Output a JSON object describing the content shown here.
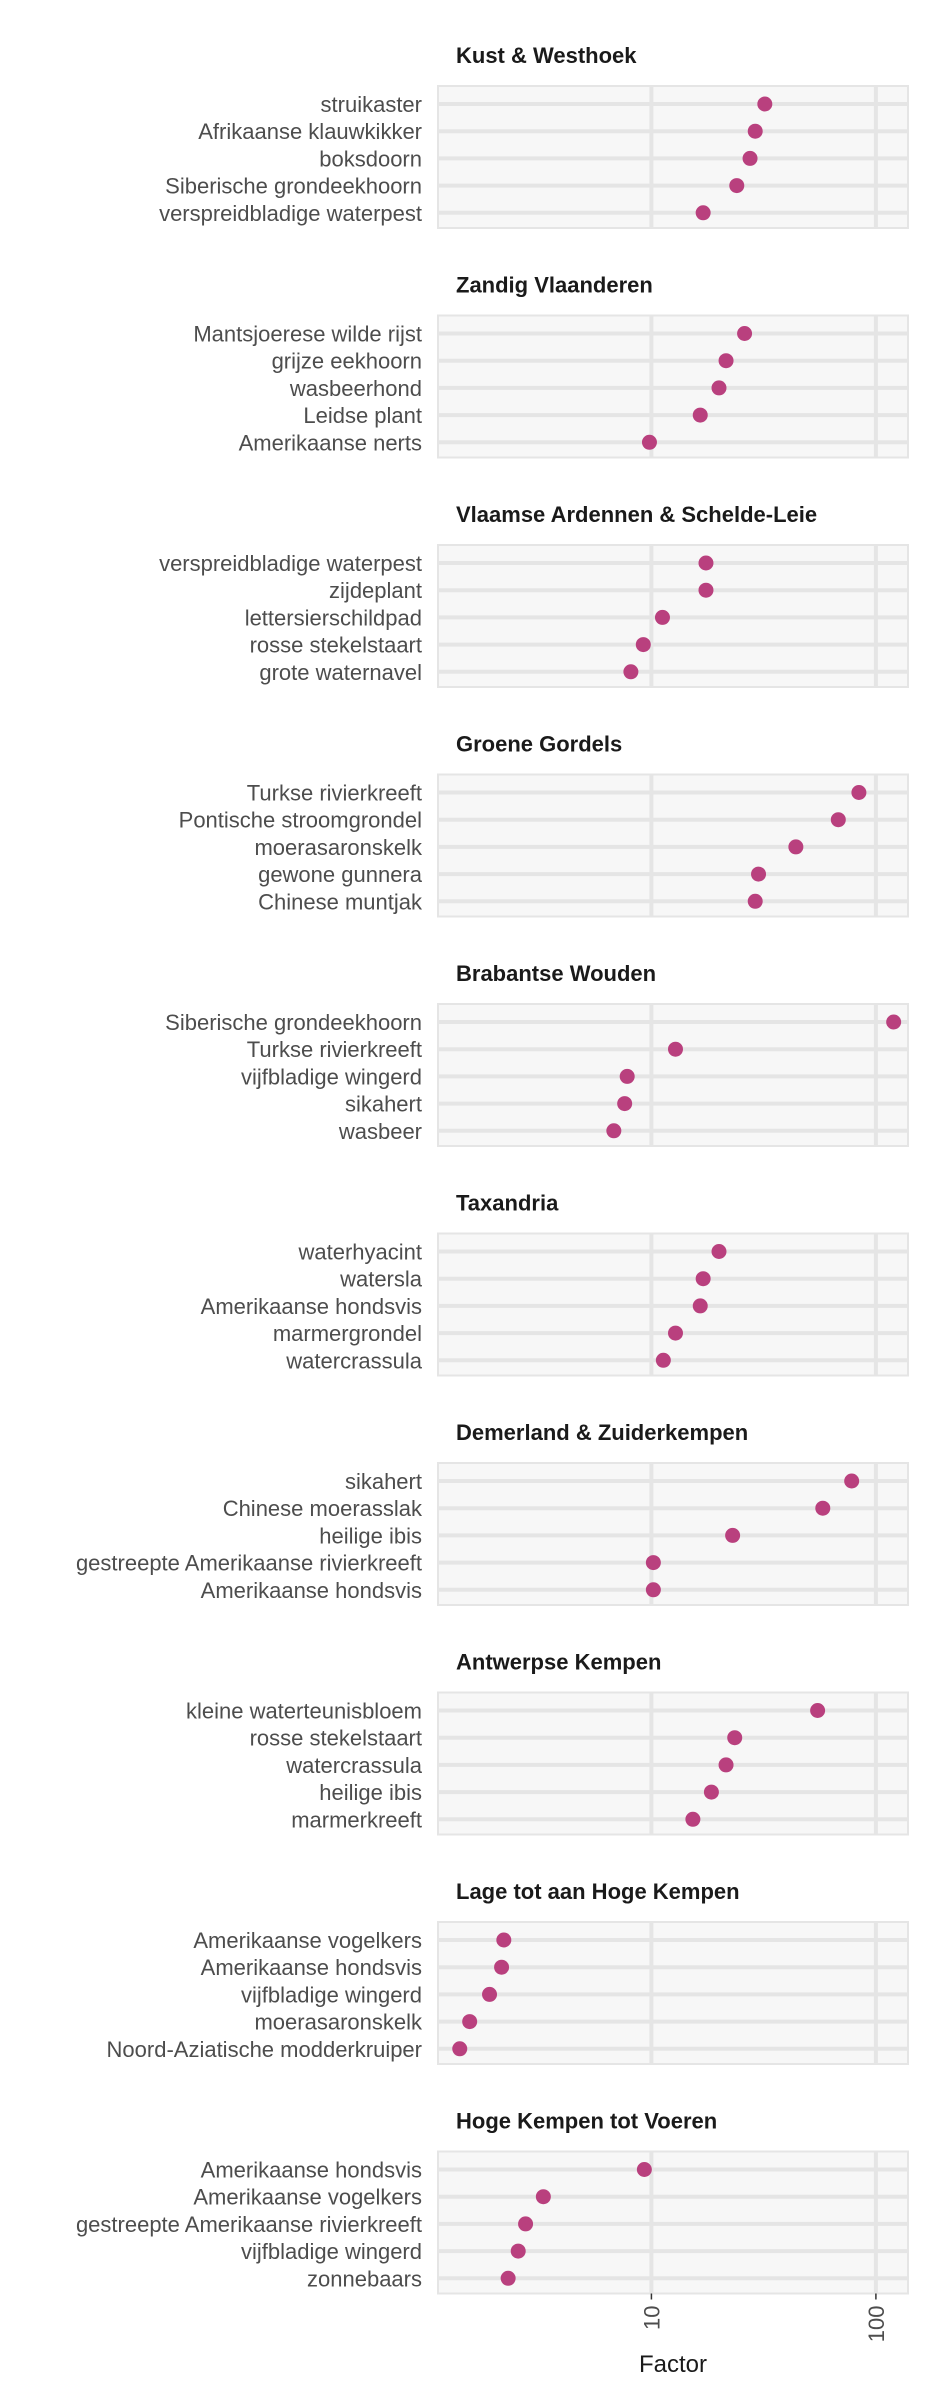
{
  "chart_data": {
    "type": "scatter",
    "x_axis": {
      "label": "Factor",
      "scale": "log10",
      "range": [
        1.12,
        139
      ],
      "ticks": [
        10,
        100
      ],
      "tick_labels": [
        "10",
        "100"
      ]
    },
    "colors": {
      "point": "#B9407E",
      "panel_background": "#F7F7F7",
      "grid": "#E5E5E5"
    },
    "grid": true,
    "panels": [
      {
        "title": "Kust & Westhoek",
        "categories": [
          "struikaster",
          "Afrikaanse klauwkikker",
          "boksdoorn",
          "Siberische grondeekhoorn",
          "verspreidbladige waterpest"
        ],
        "values": [
          32,
          29,
          27.5,
          24,
          17
        ]
      },
      {
        "title": "Zandig Vlaanderen",
        "categories": [
          "Mantsjoerese wilde rijst",
          "grijze eekhoorn",
          "wasbeerhond",
          "Leidse plant",
          "Amerikaanse nerts"
        ],
        "values": [
          26,
          21.5,
          20,
          16.5,
          9.8
        ]
      },
      {
        "title": "Vlaamse Ardennen & Schelde-Leie",
        "categories": [
          "verspreidbladige waterpest",
          "zijdeplant",
          "lettersierschildpad",
          "rosse stekelstaart",
          "grote waternavel"
        ],
        "values": [
          17.5,
          17.5,
          11.2,
          9.2,
          8.1
        ]
      },
      {
        "title": "Groene Gordels",
        "categories": [
          "Turkse rivierkreeft",
          "Pontische stroomgrondel",
          "moerasaronskelk",
          "gewone gunnera",
          "Chinese muntjak"
        ],
        "values": [
          84,
          68,
          44,
          30,
          29
        ]
      },
      {
        "title": "Brabantse Wouden",
        "categories": [
          "Siberische grondeekhoorn",
          "Turkse rivierkreeft",
          "vijfbladige wingerd",
          "sikahert",
          "wasbeer"
        ],
        "values": [
          120,
          12.8,
          7.8,
          7.6,
          6.8
        ]
      },
      {
        "title": "Taxandria",
        "categories": [
          "waterhyacint",
          "watersla",
          "Amerikaanse hondsvis",
          "marmergrondel",
          "watercrassula"
        ],
        "values": [
          20,
          17,
          16.5,
          12.8,
          11.3
        ]
      },
      {
        "title": "Demerland & Zuiderkempen",
        "categories": [
          "sikahert",
          "Chinese moerasslak",
          "heilige ibis",
          "gestreepte Amerikaanse rivierkreeft",
          "Amerikaanse hondsvis"
        ],
        "values": [
          78,
          58,
          23,
          10.2,
          10.2
        ]
      },
      {
        "title": "Antwerpse Kempen",
        "categories": [
          "kleine waterteunisbloem",
          "rosse stekelstaart",
          "watercrassula",
          "heilige ibis",
          "marmerkreeft"
        ],
        "values": [
          55,
          23.5,
          21.5,
          18.5,
          15.3
        ]
      },
      {
        "title": "Lage tot aan Hoge Kempen",
        "categories": [
          "Amerikaanse vogelkers",
          "Amerikaanse hondsvis",
          "vijfbladige wingerd",
          "moerasaronskelk",
          "Noord-Aziatische modderkruiper"
        ],
        "values": [
          2.2,
          2.15,
          1.9,
          1.55,
          1.4
        ]
      },
      {
        "title": "Hoge Kempen tot Voeren",
        "categories": [
          "Amerikaanse hondsvis",
          "Amerikaanse vogelkers",
          "gestreepte Amerikaanse rivierkreeft",
          "vijfbladige wingerd",
          "zonnebaars"
        ],
        "values": [
          9.3,
          3.3,
          2.75,
          2.55,
          2.3
        ]
      }
    ]
  }
}
